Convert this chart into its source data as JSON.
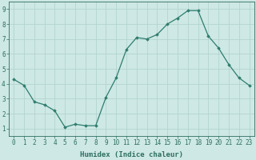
{
  "x": [
    0,
    1,
    2,
    3,
    4,
    5,
    6,
    7,
    8,
    9,
    10,
    11,
    12,
    13,
    14,
    15,
    16,
    17,
    18,
    19,
    20,
    21,
    22,
    23
  ],
  "y": [
    4.3,
    3.9,
    2.8,
    2.6,
    2.2,
    1.1,
    1.3,
    1.2,
    1.2,
    3.1,
    4.4,
    6.3,
    7.1,
    7.0,
    7.3,
    8.0,
    8.4,
    8.9,
    8.9,
    7.2,
    6.4,
    5.3,
    4.4,
    3.9
  ],
  "xlabel": "Humidex (Indice chaleur)",
  "ylim": [
    0.5,
    9.5
  ],
  "xlim": [
    -0.5,
    23.5
  ],
  "yticks": [
    1,
    2,
    3,
    4,
    5,
    6,
    7,
    8,
    9
  ],
  "xticks": [
    0,
    1,
    2,
    3,
    4,
    5,
    6,
    7,
    8,
    9,
    10,
    11,
    12,
    13,
    14,
    15,
    16,
    17,
    18,
    19,
    20,
    21,
    22,
    23
  ],
  "line_color": "#2e7d6e",
  "marker": "D",
  "marker_size": 1.8,
  "bg_color": "#cde8e5",
  "grid_color": "#b0d0cc",
  "axis_color": "#2e6e60",
  "xlabel_fontsize": 6.5,
  "tick_fontsize": 5.5,
  "linewidth": 0.9
}
